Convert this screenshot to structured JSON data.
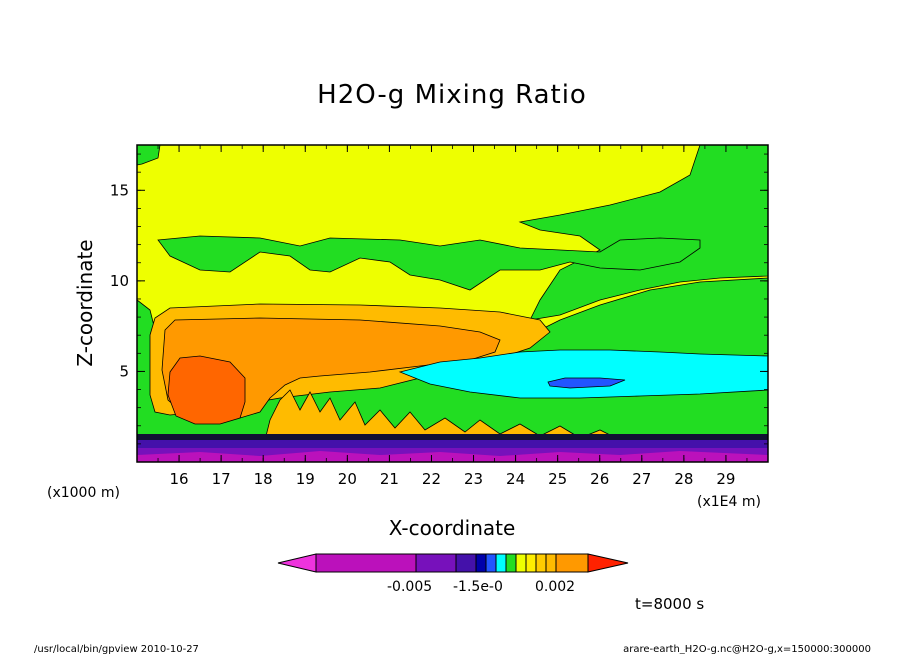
{
  "chart_data": {
    "type": "heatmap",
    "title": "H2O-g Mixing Ratio",
    "xlabel": "X-coordinate",
    "ylabel": "Z-coordinate",
    "x_unit_left": "(x1000 m)",
    "x_unit_right": "(x1E4 m)",
    "x_ticks": [
      "16",
      "17",
      "18",
      "19",
      "20",
      "21",
      "22",
      "23",
      "24",
      "25",
      "26",
      "27",
      "28",
      "29"
    ],
    "y_ticks": [
      "5",
      "10",
      "15"
    ],
    "xlim": [
      15.0,
      30.0
    ],
    "ylim": [
      0,
      17.5
    ],
    "colorbar_labels": [
      "-0.005",
      "-1.5e-0",
      "0.002"
    ],
    "time_label": "t=8000 s",
    "footer_left": "/usr/local/bin/gpview  2010-10-27",
    "footer_right": "arare-earth_H2O-g.nc@H2O-g,x=150000:300000",
    "colors": {
      "background_high": "#eeff00",
      "green": "#22dd22",
      "light_orange": "#ffbb00",
      "orange": "#ff9900",
      "dark_orange": "#ff6600",
      "cyan": "#00ffff",
      "blue": "#2255ff",
      "dark_blue": "#0000aa",
      "indigo": "#4411aa",
      "purple": "#7711bb",
      "magenta": "#bb11bb",
      "pink": "#ee33dd",
      "red": "#ff2200"
    }
  }
}
